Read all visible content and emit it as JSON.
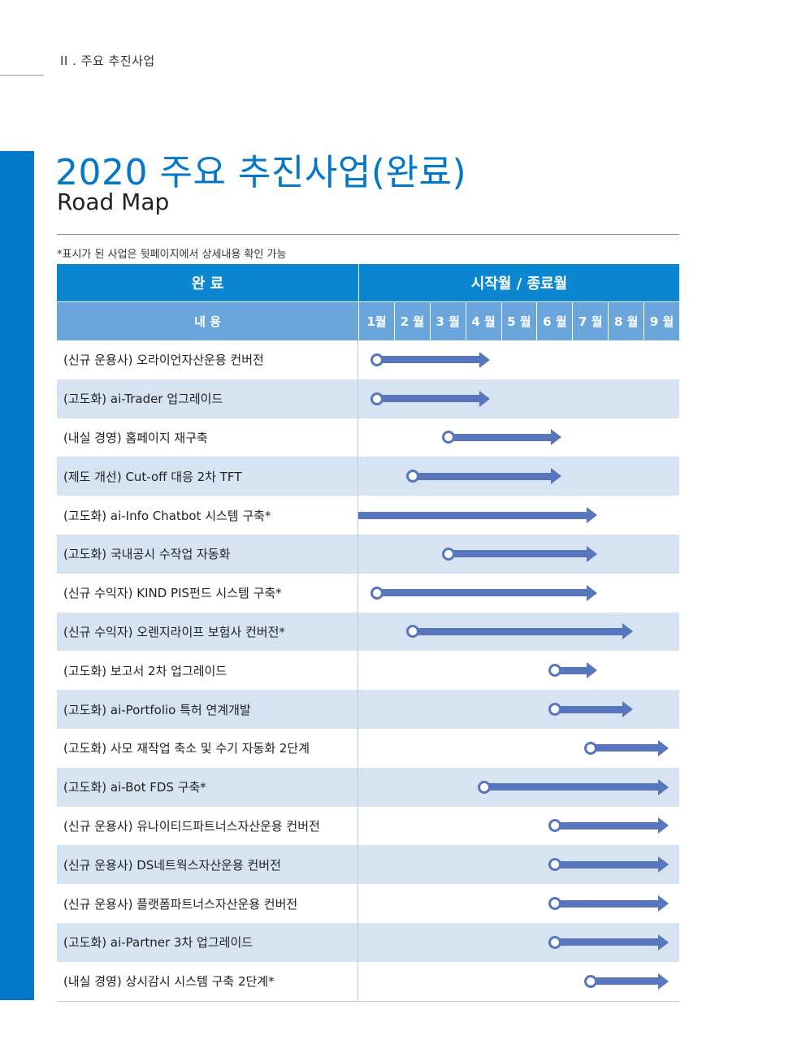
{
  "section_label": "II . 주요 추진사업",
  "title": "2020 주요 추진사업(완료)",
  "subtitle": "Road Map",
  "note": "*표시가 된 사업은 뒷페이지에서  상세내용 확인 가능",
  "header": {
    "col1": "완 료",
    "col2": "시작월 / 종료월",
    "sub_col1": "내 용"
  },
  "months": [
    "1월",
    "2 월",
    "3 월",
    "4 월",
    "5 월",
    "6 월",
    "7 월",
    "8 월",
    "9 월"
  ],
  "colors": {
    "accent": "#0478c8",
    "header": "#0a87d0",
    "subheader": "#6aa5dc",
    "row_alt": "#d6e3f2",
    "bar": "#5876bc"
  },
  "tasks": [
    {
      "label": "(신규 운용사) 오라이언자산운용 컨버전",
      "start_month": 1,
      "end_month": 4,
      "start_marker": true
    },
    {
      "label": "(고도화) ai-Trader 업그레이드",
      "start_month": 1,
      "end_month": 4,
      "start_marker": true
    },
    {
      "label": "(내실 경영) 홈페이지 재구축",
      "start_month": 3,
      "end_month": 6,
      "start_marker": true
    },
    {
      "label": "(제도 개선) Cut-off 대응 2차 TFT",
      "start_month": 2,
      "end_month": 6,
      "start_marker": true
    },
    {
      "label": "(고도화) ai-Info Chatbot 시스템 구축*",
      "start_month": 0.5,
      "end_month": 7,
      "start_marker": false
    },
    {
      "label": "(고도화) 국내공시 수작업 자동화",
      "start_month": 3,
      "end_month": 7,
      "start_marker": true
    },
    {
      "label": "(신규 수익자) KIND PIS펀드 시스템 구축*",
      "start_month": 1,
      "end_month": 7,
      "start_marker": true
    },
    {
      "label": "(신규 수익자) 오렌지라이프 보험사 컨버전*",
      "start_month": 2,
      "end_month": 8,
      "start_marker": true
    },
    {
      "label": "(고도화) 보고서 2차 업그레이드",
      "start_month": 6,
      "end_month": 7,
      "start_marker": true
    },
    {
      "label": "(고도화) ai-Portfolio 특허 연계개발",
      "start_month": 6,
      "end_month": 8,
      "start_marker": true
    },
    {
      "label": "(고도화) 사모 재작업 축소 및 수기 자동화 2단계",
      "start_month": 7,
      "end_month": 9,
      "start_marker": true
    },
    {
      "label": "(고도화) ai-Bot FDS 구축*",
      "start_month": 4,
      "end_month": 9,
      "start_marker": true
    },
    {
      "label": "(신규 운용사) 유나이티드파트너스자산운용 컨버전",
      "start_month": 6,
      "end_month": 9,
      "start_marker": true
    },
    {
      "label": "(신규 운용사) DS네트웍스자산운용 컨버전",
      "start_month": 6,
      "end_month": 9,
      "start_marker": true
    },
    {
      "label": "(신규 운용사) 플랫폼파트너스자산운용 컨버전",
      "start_month": 6,
      "end_month": 9,
      "start_marker": true
    },
    {
      "label": "(고도화) ai-Partner 3차 업그레이드",
      "start_month": 6,
      "end_month": 9,
      "start_marker": true
    },
    {
      "label": "(내실 경영) 상시감시 시스템 구축 2단계*",
      "start_month": 7,
      "end_month": 9,
      "start_marker": true
    }
  ]
}
